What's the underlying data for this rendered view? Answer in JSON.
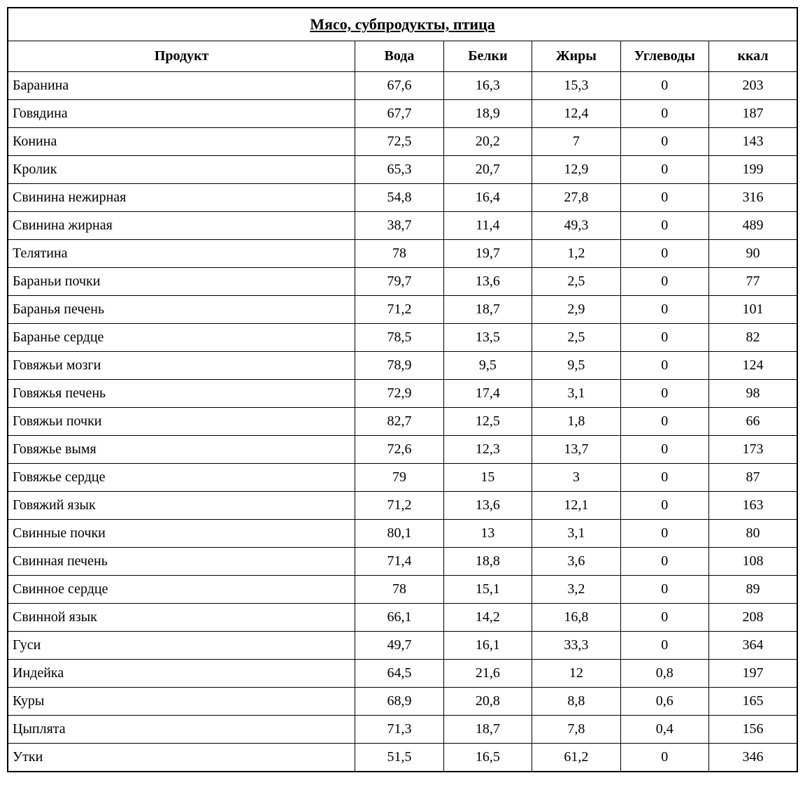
{
  "table": {
    "title": "Мясо, субпродукты, птица",
    "columns": [
      "Продукт",
      "Вода",
      "Белки",
      "Жиры",
      "Углеводы",
      "ккал"
    ],
    "column_widths": [
      "44%",
      "11.2%",
      "11.2%",
      "11.2%",
      "11.2%",
      "11.2%"
    ],
    "column_alignments": [
      "left",
      "center",
      "center",
      "center",
      "center",
      "center"
    ],
    "rows": [
      [
        "Баранина",
        "67,6",
        "16,3",
        "15,3",
        "0",
        "203"
      ],
      [
        "Говядина",
        "67,7",
        "18,9",
        "12,4",
        "0",
        "187"
      ],
      [
        "Конина",
        "72,5",
        "20,2",
        "7",
        "0",
        "143"
      ],
      [
        "Кролик",
        "65,3",
        "20,7",
        "12,9",
        "0",
        "199"
      ],
      [
        "Свинина нежирная",
        "54,8",
        "16,4",
        "27,8",
        "0",
        "316"
      ],
      [
        "Свинина жирная",
        "38,7",
        "11,4",
        "49,3",
        "0",
        "489"
      ],
      [
        "Телятина",
        "78",
        "19,7",
        "1,2",
        "0",
        "90"
      ],
      [
        "Бараньи почки",
        "79,7",
        "13,6",
        "2,5",
        "0",
        "77"
      ],
      [
        "Баранья печень",
        "71,2",
        "18,7",
        "2,9",
        "0",
        "101"
      ],
      [
        "Баранье сердце",
        "78,5",
        "13,5",
        "2,5",
        "0",
        "82"
      ],
      [
        "Говяжьи мозги",
        "78,9",
        "9,5",
        "9,5",
        "0",
        "124"
      ],
      [
        "Говяжья печень",
        "72,9",
        "17,4",
        "3,1",
        "0",
        "98"
      ],
      [
        "Говяжьи почки",
        "82,7",
        "12,5",
        "1,8",
        "0",
        "66"
      ],
      [
        "Говяжье вымя",
        "72,6",
        "12,3",
        "13,7",
        "0",
        "173"
      ],
      [
        "Говяжье сердце",
        "79",
        "15",
        "3",
        "0",
        "87"
      ],
      [
        "Говяжий язык",
        "71,2",
        "13,6",
        "12,1",
        "0",
        "163"
      ],
      [
        "Свинные почки",
        "80,1",
        "13",
        "3,1",
        "0",
        "80"
      ],
      [
        "Свинная печень",
        "71,4",
        "18,8",
        "3,6",
        "0",
        "108"
      ],
      [
        "Свинное сердце",
        "78",
        "15,1",
        "3,2",
        "0",
        "89"
      ],
      [
        "Свинной язык",
        "66,1",
        "14,2",
        "16,8",
        "0",
        "208"
      ],
      [
        "Гуси",
        "49,7",
        "16,1",
        "33,3",
        "0",
        "364"
      ],
      [
        "Индейка",
        "64,5",
        "21,6",
        "12",
        "0,8",
        "197"
      ],
      [
        "Куры",
        "68,9",
        "20,8",
        "8,8",
        "0,6",
        "165"
      ],
      [
        "Цыплята",
        "71,3",
        "18,7",
        "7,8",
        "0,4",
        "156"
      ],
      [
        "Утки",
        "51,5",
        "16,5",
        "61,2",
        "0",
        "346"
      ]
    ],
    "border_color": "#000000",
    "background_color": "#ffffff",
    "text_color": "#000000",
    "title_fontsize": 22,
    "header_fontsize": 20,
    "cell_fontsize": 20,
    "font_family": "Georgia, Times New Roman, serif"
  }
}
